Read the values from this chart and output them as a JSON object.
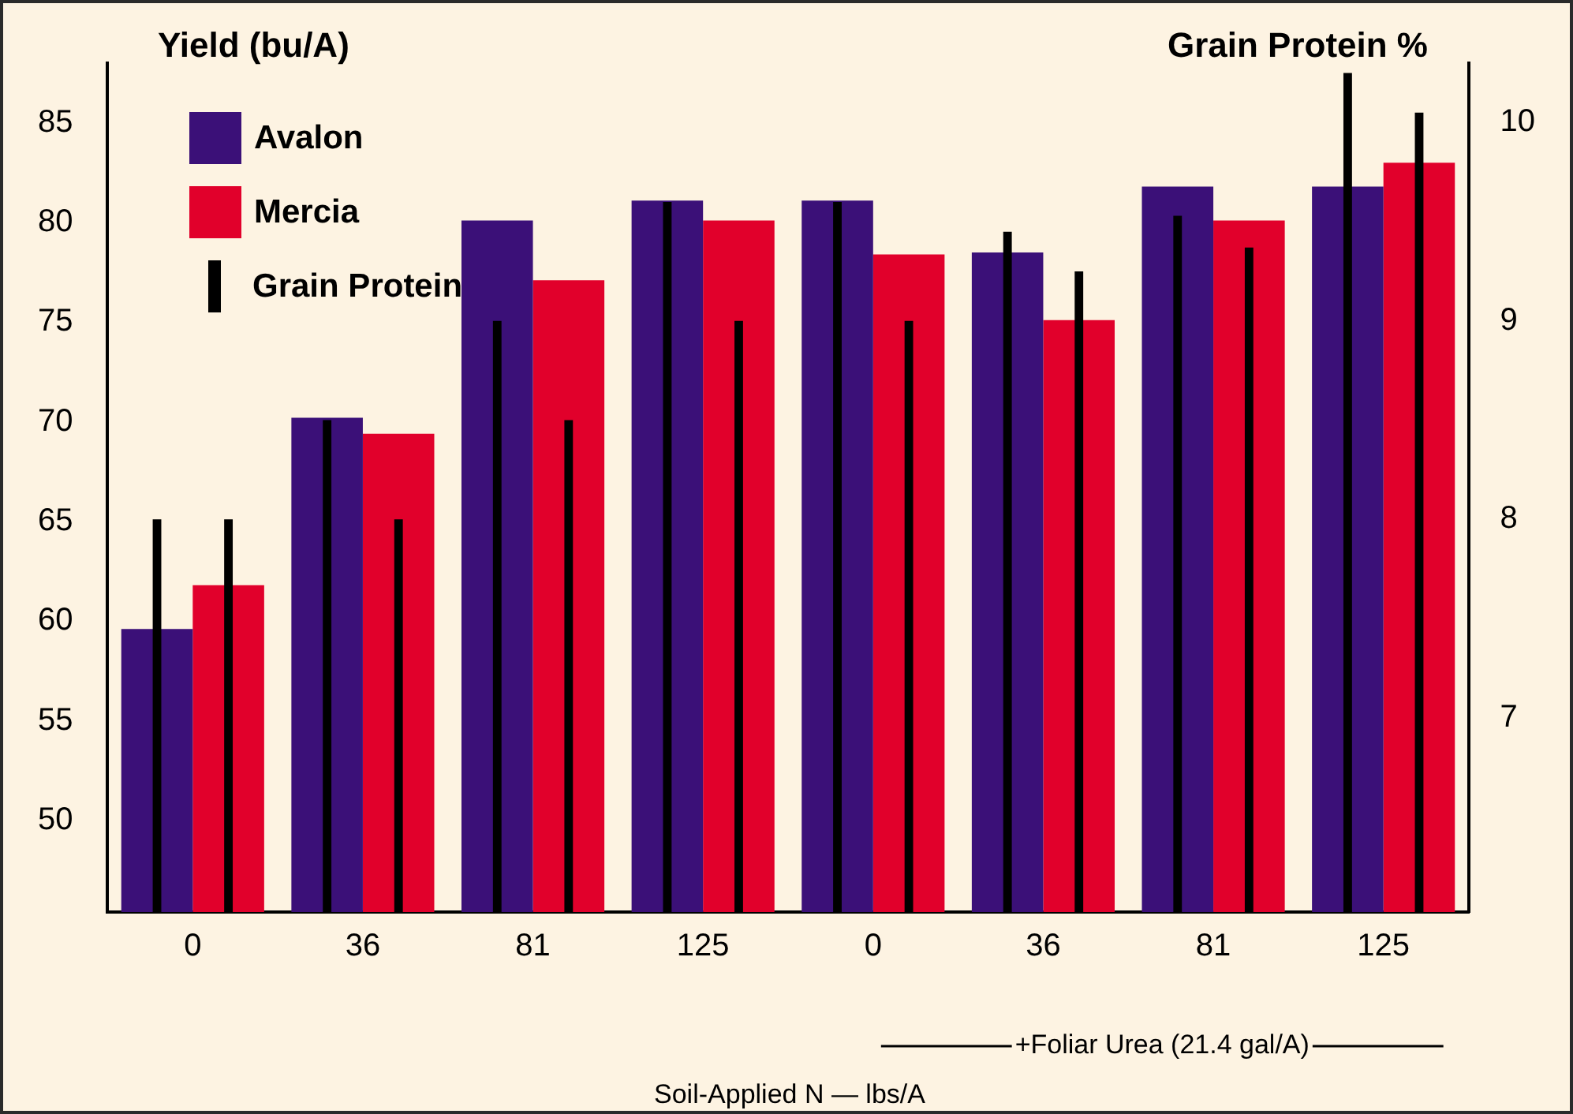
{
  "chart_data": {
    "type": "bar",
    "ylabel": "Yield (bu/A)",
    "y2label": "Grain Protein %",
    "xlabel": "Soil-Applied N — lbs/A",
    "categories": [
      "0",
      "36",
      "81",
      "125",
      "0",
      "36",
      "81",
      "125"
    ],
    "series": [
      {
        "name": "Avalon",
        "color": "#3b1078",
        "values": [
          59.6,
          70.2,
          80.1,
          81.1,
          81.1,
          78.5,
          81.8,
          81.8
        ]
      },
      {
        "name": "Mercia",
        "color": "#e1002b",
        "values": [
          61.8,
          69.4,
          77.1,
          80.1,
          78.4,
          75.1,
          80.1,
          83.0
        ]
      },
      {
        "name": "Grain Protein",
        "color": "#000000",
        "axis": "y2",
        "values": [
          8.0,
          8.5,
          9.0,
          9.6,
          9.6,
          9.45,
          9.53,
          10.25
        ]
      },
      {
        "color": "#000000",
        "axis": "y2",
        "values": [
          8.0,
          8.0,
          8.5,
          9.0,
          9.0,
          9.25,
          9.37,
          10.05
        ]
      }
    ],
    "ylim": [
      45.4,
      88
    ],
    "yticks": [
      50,
      55,
      60,
      65,
      70,
      75,
      80,
      85
    ],
    "y2lim": [
      6.02,
      10.3
    ],
    "y2ticks": [
      7,
      8,
      9,
      10
    ],
    "annotations": [
      "+Foliar Urea (21.4 gal/A)"
    ],
    "legend": "top left",
    "grid": false
  }
}
